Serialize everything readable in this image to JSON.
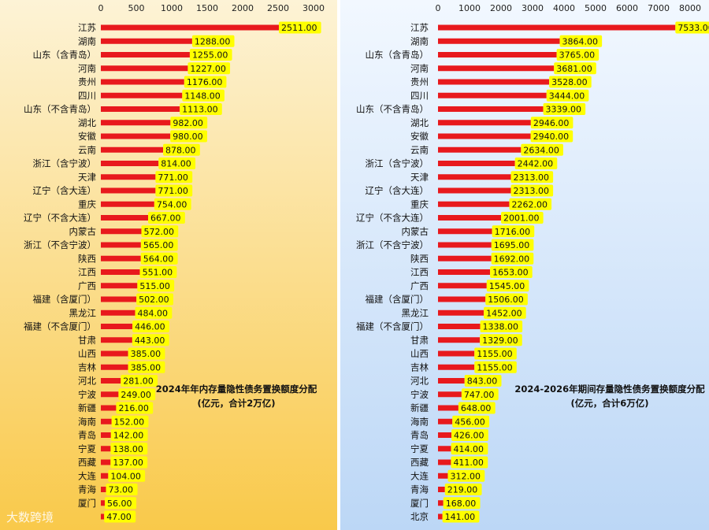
{
  "colors": {
    "bar": "#e8191d",
    "label_bg": "#ffff00",
    "left_bg_top": "#fdf3d6",
    "left_bg_bottom": "#f9c94a",
    "right_bg_top": "#f2f8ff",
    "right_bg_bottom": "#bcd7f6"
  },
  "watermark": "大数跨境",
  "chart_data": [
    {
      "type": "bar",
      "orientation": "horizontal",
      "annotation": [
        "2024年年内存量隐性债务置换额度分配",
        "(亿元，合计2万亿)"
      ],
      "xlim": [
        0,
        3000
      ],
      "xticks": [
        "0",
        "500",
        "1000",
        "1500",
        "2000",
        "2500",
        "3000"
      ],
      "categories": [
        "江苏",
        "湖南",
        "山东（含青岛）",
        "河南",
        "贵州",
        "四川",
        "山东（不含青岛）",
        "湖北",
        "安徽",
        "云南",
        "浙江（含宁波）",
        "天津",
        "辽宁（含大连）",
        "重庆",
        "辽宁（不含大连）",
        "内蒙古",
        "浙江（不含宁波）",
        "陕西",
        "江西",
        "广西",
        "福建（含厦门）",
        "黑龙江",
        "福建（不含厦门）",
        "甘肃",
        "山西",
        "吉林",
        "河北",
        "宁波",
        "新疆",
        "海南",
        "青岛",
        "宁夏",
        "西藏",
        "大连",
        "青海",
        "厦门",
        ""
      ],
      "values": [
        2511,
        1288,
        1255,
        1227,
        1176,
        1148,
        1113,
        982,
        980,
        878,
        814,
        771,
        771,
        754,
        667,
        572,
        565,
        564,
        551,
        515,
        502,
        484,
        446,
        443,
        385,
        385,
        281,
        249,
        216,
        152,
        142,
        138,
        137,
        104,
        73,
        56,
        47
      ],
      "value_labels": [
        "2511.00",
        "1288.00",
        "1255.00",
        "1227.00",
        "1176.00",
        "1148.00",
        "1113.00",
        "982.00",
        "980.00",
        "878.00",
        "814.00",
        "771.00",
        "771.00",
        "754.00",
        "667.00",
        "572.00",
        "565.00",
        "564.00",
        "551.00",
        "515.00",
        "502.00",
        "484.00",
        "446.00",
        "443.00",
        "385.00",
        "385.00",
        "281.00",
        "249.00",
        "216.00",
        "152.00",
        "142.00",
        "138.00",
        "137.00",
        "104.00",
        "73.00",
        "56.00",
        "47.00"
      ]
    },
    {
      "type": "bar",
      "orientation": "horizontal",
      "annotation": [
        "2024-2026年期间存量隐性债务置换额度分配",
        "(亿元，合计6万亿)"
      ],
      "xlim": [
        0,
        8000
      ],
      "xticks": [
        "0",
        "1000",
        "2000",
        "3000",
        "4000",
        "5000",
        "6000",
        "7000",
        "8000"
      ],
      "categories": [
        "江苏",
        "湖南",
        "山东（含青岛）",
        "河南",
        "贵州",
        "四川",
        "山东（不含青岛）",
        "湖北",
        "安徽",
        "云南",
        "浙江（含宁波）",
        "天津",
        "辽宁（含大连）",
        "重庆",
        "辽宁（不含大连）",
        "内蒙古",
        "浙江（不含宁波）",
        "陕西",
        "江西",
        "广西",
        "福建（含厦门）",
        "黑龙江",
        "福建（不含厦门）",
        "甘肃",
        "山西",
        "吉林",
        "河北",
        "宁波",
        "新疆",
        "海南",
        "青岛",
        "宁夏",
        "西藏",
        "大连",
        "青海",
        "厦门",
        "北京"
      ],
      "values": [
        7533,
        3864,
        3765,
        3681,
        3528,
        3444,
        3339,
        2946,
        2940,
        2634,
        2442,
        2313,
        2313,
        2262,
        2001,
        1716,
        1695,
        1692,
        1653,
        1545,
        1506,
        1452,
        1338,
        1329,
        1155,
        1155,
        843,
        747,
        648,
        456,
        426,
        414,
        411,
        312,
        219,
        168,
        141
      ],
      "value_labels": [
        "7533.00",
        "3864.00",
        "3765.00",
        "3681.00",
        "3528.00",
        "3444.00",
        "3339.00",
        "2946.00",
        "2940.00",
        "2634.00",
        "2442.00",
        "2313.00",
        "2313.00",
        "2262.00",
        "2001.00",
        "1716.00",
        "1695.00",
        "1692.00",
        "1653.00",
        "1545.00",
        "1506.00",
        "1452.00",
        "1338.00",
        "1329.00",
        "1155.00",
        "1155.00",
        "843.00",
        "747.00",
        "648.00",
        "456.00",
        "426.00",
        "414.00",
        "411.00",
        "312.00",
        "219.00",
        "168.00",
        "141.00"
      ]
    }
  ]
}
